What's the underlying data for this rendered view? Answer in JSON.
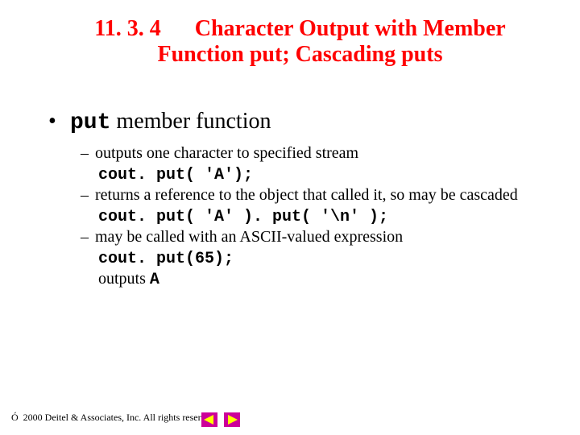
{
  "title": {
    "section_number": "11. 3. 4",
    "spacer": "      ",
    "line1": "Character Output with Member",
    "line2": "Function put; Cascading puts",
    "color": "#ff0000",
    "fontsize_pt": 28,
    "bold": true
  },
  "main_bullet": {
    "marker": "•",
    "code_word": "put",
    "rest": " member function",
    "fontsize_pt": 28
  },
  "subitems": [
    {
      "dash": "–",
      "text": "outputs one character to specified stream",
      "code": "cout. put( 'A');"
    },
    {
      "dash": "–",
      "text": "returns a reference to the object that called it, so may be cascaded",
      "code": "cout. put( 'A' ). put( '\\n' );"
    },
    {
      "dash": "–",
      "text": "may be called with an ASCII-valued expression",
      "code": "cout. put(65);",
      "trail_plain": "outputs ",
      "trail_code": "A"
    }
  ],
  "footer": {
    "copyright_symbol": "Ó",
    "text": "2000 Deitel & Associates, Inc.  All rights reserved."
  },
  "nav": {
    "prev_color": "#cc0099",
    "next_color": "#cc0099",
    "arrow_color": "#ffff00"
  },
  "colors": {
    "background": "#ffffff",
    "text": "#000000",
    "title": "#ff0000"
  }
}
